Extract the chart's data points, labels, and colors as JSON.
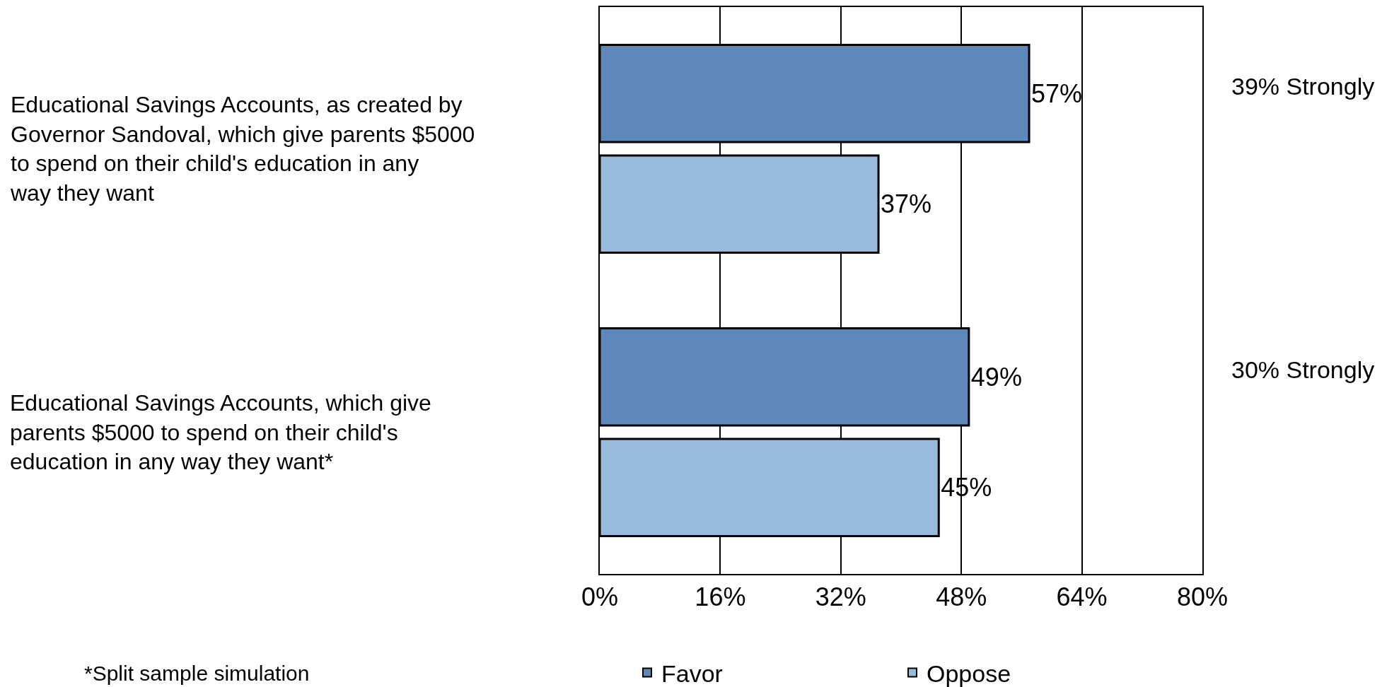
{
  "chart_data": {
    "type": "bar",
    "orientation": "horizontal",
    "categories": [
      "Educational Savings Accounts, as created by Governor Sandoval, which give parents $5000 to spend on their child's education in any way they want",
      "Educational Savings Accounts, which give parents $5000 to spend on their child's education in any way they want*"
    ],
    "series": [
      {
        "name": "Favor",
        "color": "#5f88ba",
        "values": [
          57,
          49
        ],
        "value_labels": [
          "57%",
          "49%"
        ]
      },
      {
        "name": "Oppose",
        "color": "#97badd",
        "values": [
          37,
          45
        ],
        "value_labels": [
          "37%",
          "45%"
        ]
      }
    ],
    "xlim": [
      0,
      80
    ],
    "xticks": [
      {
        "value": 0,
        "label": "0%"
      },
      {
        "value": 16,
        "label": "16%"
      },
      {
        "value": 32,
        "label": "32%"
      },
      {
        "value": 48,
        "label": "48%"
      },
      {
        "value": 64,
        "label": "64%"
      },
      {
        "value": 80,
        "label": "80%"
      }
    ],
    "grid": "x",
    "legend": "bottom",
    "annotations": [
      "39% Strongly",
      "30% Strongly",
      "*Split sample simulation"
    ]
  }
}
